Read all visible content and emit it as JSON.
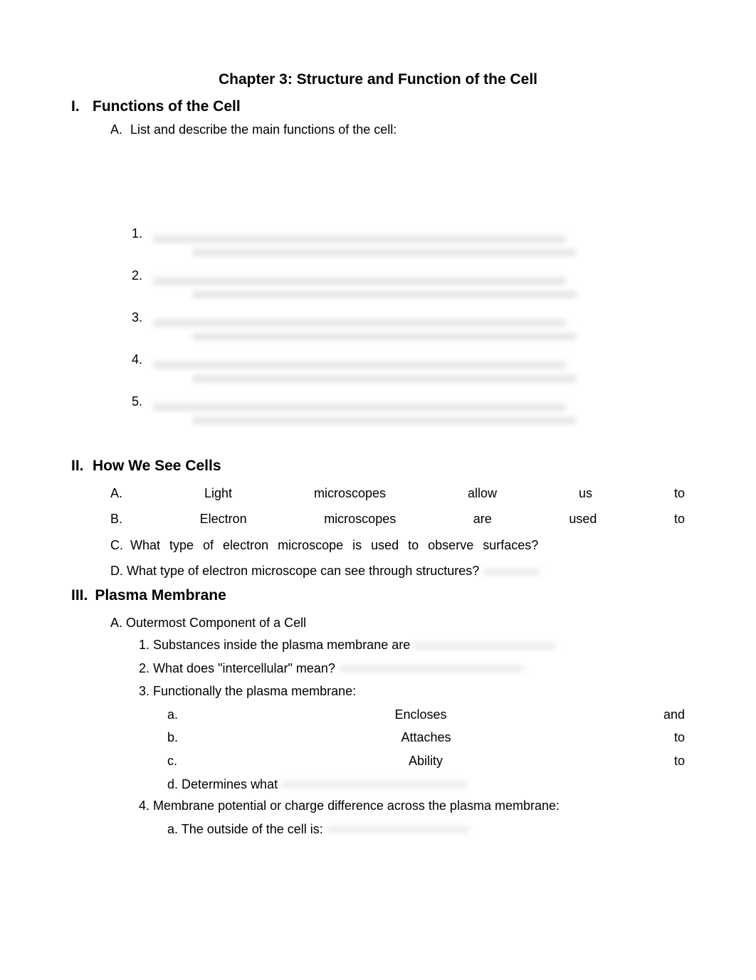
{
  "chapter": {
    "title": "Chapter 3: Structure and Function of the Cell"
  },
  "section1": {
    "roman": "I.",
    "heading": "Functions of the Cell",
    "subA": {
      "letter": "A.",
      "text": "List and describe the main functions of the cell:"
    },
    "items": [
      {
        "num": "1."
      },
      {
        "num": "2."
      },
      {
        "num": "3."
      },
      {
        "num": "4."
      },
      {
        "num": "5."
      }
    ]
  },
  "section2": {
    "roman": "II.",
    "heading": "How We See Cells",
    "rowA": {
      "letter": "A.",
      "w1": "Light",
      "w2": "microscopes",
      "w3": "allow",
      "w4": "us",
      "w5": "to"
    },
    "rowB": {
      "letter": "B.",
      "w1": "Electron",
      "w2": "microscopes",
      "w3": "are",
      "w4": "used",
      "w5": "to"
    },
    "rowC": {
      "letter": "C.",
      "text": "What type of electron microscope is used to observe surfaces?"
    },
    "rowD": {
      "letter": "D.",
      "text": "What type of electron microscope can see through structures?"
    }
  },
  "section3": {
    "roman": "III.",
    "heading": "Plasma Membrane",
    "subA": {
      "letter": "A.",
      "text": "Outermost Component of a Cell"
    },
    "item1": {
      "num": "1.",
      "text": "Substances inside the plasma membrane are"
    },
    "item2": {
      "num": "2.",
      "text": "What does \"intercellular\" mean?"
    },
    "item3": {
      "num": "3.",
      "text": "Functionally the plasma membrane:"
    },
    "sub_a": {
      "letter": "a.",
      "word": "Encloses",
      "end": "and"
    },
    "sub_b": {
      "letter": "b.",
      "word": "Attaches",
      "end": "to"
    },
    "sub_c": {
      "letter": "c.",
      "word": "Ability",
      "end": "to"
    },
    "sub_d": {
      "letter": "d.",
      "text": "Determines what"
    },
    "item4": {
      "num": "4.",
      "text": "Membrane potential or charge difference across the plasma membrane:"
    },
    "sub4a": {
      "letter": "a.",
      "text": "The outside of the cell is:"
    }
  },
  "colors": {
    "text": "#000000",
    "background": "#ffffff",
    "blur": "#cccccc"
  },
  "typography": {
    "title_size": 21,
    "body_size": 18,
    "font_family": "Arial"
  }
}
